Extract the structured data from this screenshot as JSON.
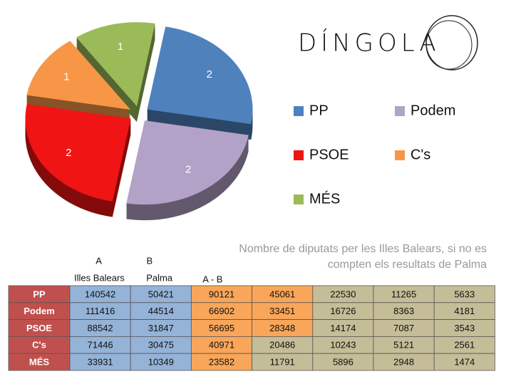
{
  "chart_data": {
    "type": "pie",
    "categories": [
      "PP",
      "Podem",
      "PSOE",
      "C's",
      "MÉS"
    ],
    "values": [
      2,
      2,
      2,
      1,
      1
    ],
    "colors": [
      "#4f81bd",
      "#b3a2c7",
      "#f01414",
      "#f79646",
      "#9bbb59"
    ],
    "legend": "right"
  },
  "logo": "DÍNGOLA",
  "caption": [
    "Nombre de diputats per les Illes Balears, si no es",
    "compten els resultats de Palma"
  ],
  "table": {
    "head": [
      {
        "letter": "A",
        "label": "Illes Balears"
      },
      {
        "letter": "B",
        "label": "Palma"
      },
      {
        "label": "A - B"
      }
    ],
    "name_fill": "#c0504d",
    "rows": [
      {
        "name": "PP",
        "cells": [
          140542,
          50421,
          90121,
          45061,
          22530,
          11265,
          5633
        ],
        "fills": [
          "#95b3d7",
          "#95b3d7",
          "#f9a65a",
          "#f9a65a",
          "#c4bd97",
          "#c4bd97",
          "#c4bd97"
        ]
      },
      {
        "name": "Podem",
        "cells": [
          111416,
          44514,
          66902,
          33451,
          16726,
          8363,
          4181
        ],
        "fills": [
          "#95b3d7",
          "#95b3d7",
          "#f9a65a",
          "#f9a65a",
          "#c4bd97",
          "#c4bd97",
          "#c4bd97"
        ]
      },
      {
        "name": "PSOE",
        "cells": [
          88542,
          31847,
          56695,
          28348,
          14174,
          7087,
          3543
        ],
        "fills": [
          "#95b3d7",
          "#95b3d7",
          "#f9a65a",
          "#f9a65a",
          "#c4bd97",
          "#c4bd97",
          "#c4bd97"
        ]
      },
      {
        "name": "C's",
        "cells": [
          71446,
          30475,
          40971,
          20486,
          10243,
          5121,
          2561
        ],
        "fills": [
          "#95b3d7",
          "#95b3d7",
          "#f9a65a",
          "#c4bd97",
          "#c4bd97",
          "#c4bd97",
          "#c4bd97"
        ]
      },
      {
        "name": "MÉS",
        "cells": [
          33931,
          10349,
          23582,
          11791,
          5896,
          2948,
          1474
        ],
        "fills": [
          "#95b3d7",
          "#95b3d7",
          "#f9a65a",
          "#c4bd97",
          "#c4bd97",
          "#c4bd97",
          "#c4bd97"
        ]
      }
    ]
  }
}
